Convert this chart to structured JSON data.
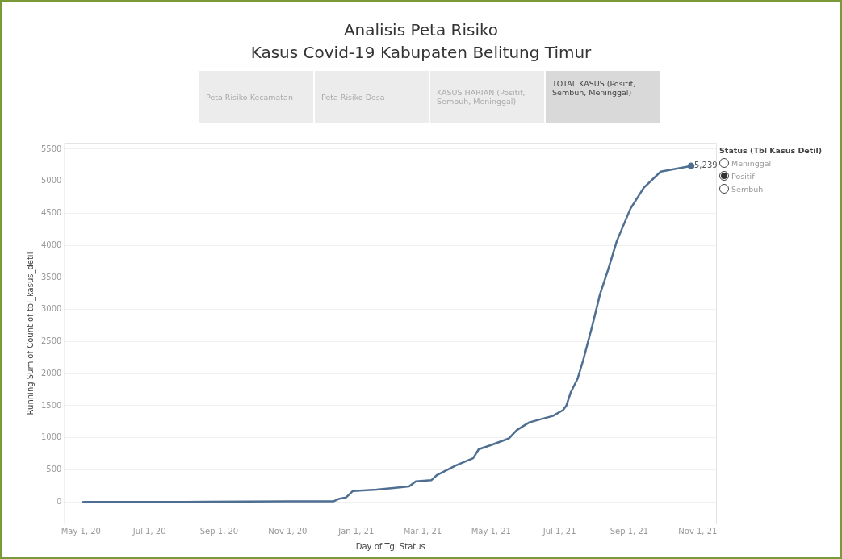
{
  "chart_data": {
    "type": "line",
    "title": "Analisis Peta Risiko\nKasus Covid-19 Kabupaten Belitung Timur",
    "xlabel": "Day of Tgl Status",
    "ylabel": "Running Sum of Count of tbl_kasus_detil",
    "annotations": [
      "Peta Risiko Kecamatan",
      "Peta Risiko Desa",
      "KASUS HARIAN (Positif, Sembuh, Meninggal)",
      "TOTAL KASUS (Positif, Sembuh, Meninggal)",
      "Status (Tbl Kasus Detil)",
      "Meninggal",
      "Positif",
      "Sembuh"
    ],
    "x": [
      "2020-05-03",
      "2020-08-01",
      "2020-11-01",
      "2020-12-12",
      "2020-12-17",
      "2020-12-23",
      "2020-12-29",
      "2021-01-19",
      "2021-02-05",
      "2021-02-17",
      "2021-02-23",
      "2021-03-09",
      "2021-03-14",
      "2021-03-31",
      "2021-04-15",
      "2021-04-20",
      "2021-04-30",
      "2021-05-17",
      "2021-05-24",
      "2021-06-04",
      "2021-06-25",
      "2021-07-04",
      "2021-07-07",
      "2021-07-11",
      "2021-07-17",
      "2021-07-22",
      "2021-07-30",
      "2021-08-06",
      "2021-08-13",
      "2021-08-21",
      "2021-09-02",
      "2021-09-14",
      "2021-09-29",
      "2021-10-26"
    ],
    "series": [
      {
        "color": "#4e6f91",
        "values": [
          0,
          0,
          10,
          10,
          50,
          70,
          170,
          190,
          220,
          240,
          320,
          340,
          420,
          570,
          680,
          820,
          880,
          990,
          1120,
          1240,
          1340,
          1430,
          1500,
          1710,
          1920,
          2210,
          2740,
          3240,
          3610,
          4070,
          4570,
          4900,
          5150,
          5239
        ],
        "value_labels": [
          null,
          null,
          null,
          null,
          null,
          null,
          null,
          null,
          null,
          null,
          null,
          null,
          null,
          null,
          null,
          null,
          null,
          null,
          null,
          null,
          null,
          null,
          null,
          null,
          null,
          null,
          null,
          null,
          null,
          null,
          null,
          null,
          null,
          "5,239"
        ]
      }
    ],
    "xlim": [
      "2020-04-16",
      "2021-11-18"
    ],
    "xticks": [
      {
        "value": "2020-05-01",
        "label": "May 1, 20"
      },
      {
        "value": "2020-07-01",
        "label": "Jul 1, 20"
      },
      {
        "value": "2020-09-01",
        "label": "Sep 1, 20"
      },
      {
        "value": "2020-11-01",
        "label": "Nov 1, 20"
      },
      {
        "value": "2021-01-01",
        "label": "Jan 1, 21"
      },
      {
        "value": "2021-03-01",
        "label": "Mar 1, 21"
      },
      {
        "value": "2021-05-01",
        "label": "May 1, 21"
      },
      {
        "value": "2021-07-01",
        "label": "Jul 1, 21"
      },
      {
        "value": "2021-09-01",
        "label": "Sep 1, 21"
      },
      {
        "value": "2021-11-01",
        "label": "Nov 1, 21"
      }
    ],
    "ylim": [
      -350,
      5600
    ],
    "yticks": [
      0,
      500,
      1000,
      1500,
      2000,
      2500,
      3000,
      3500,
      4000,
      4500,
      5000,
      5500
    ],
    "grid": "y",
    "legend": false,
    "marker": "none",
    "line_style": "solid"
  }
}
